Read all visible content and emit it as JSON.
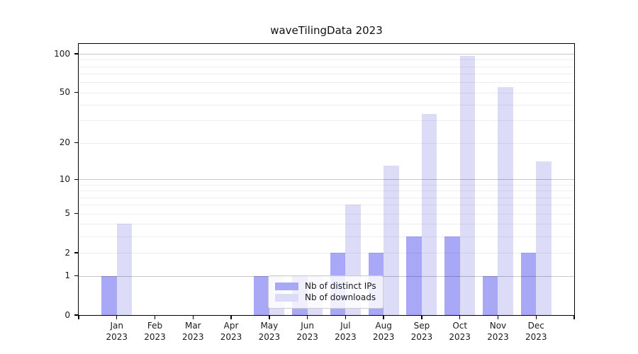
{
  "chart_data": {
    "type": "bar",
    "title": "waveTilingData 2023",
    "categories": [
      "Jan",
      "Feb",
      "Mar",
      "Apr",
      "May",
      "Jun",
      "Jul",
      "Aug",
      "Sep",
      "Oct",
      "Nov",
      "Dec"
    ],
    "category_year": "2023",
    "series": [
      {
        "name": "Nb of distinct IPs",
        "color": "#a8a8f6",
        "values": [
          1,
          0,
          0,
          0,
          1,
          1,
          2,
          2,
          3,
          3,
          1,
          2
        ]
      },
      {
        "name": "Nb of downloads",
        "color": "#dcdcf9",
        "values": [
          4,
          0,
          0,
          0,
          1,
          1,
          6,
          13,
          34,
          96,
          55,
          14
        ]
      }
    ],
    "xlabel": "",
    "ylabel": "",
    "scale": "log1p",
    "ylim": [
      0,
      119
    ],
    "y_ticks": [
      0,
      1,
      2,
      5,
      10,
      20,
      50,
      100
    ],
    "y_major_gridlines": [
      1,
      10,
      100
    ],
    "y_minor_gridlines": [
      2,
      3,
      4,
      5,
      6,
      7,
      8,
      9,
      20,
      30,
      40,
      50,
      60,
      70,
      80,
      90
    ],
    "grid": true,
    "legend_position": "lower center"
  },
  "colors": {
    "major_grid": "rgba(0,0,0,0.22)",
    "minor_grid": "rgba(0,0,0,0.065)",
    "axis": "#000000",
    "text": "#1a1a1a",
    "legend_border": "#cccccc"
  }
}
